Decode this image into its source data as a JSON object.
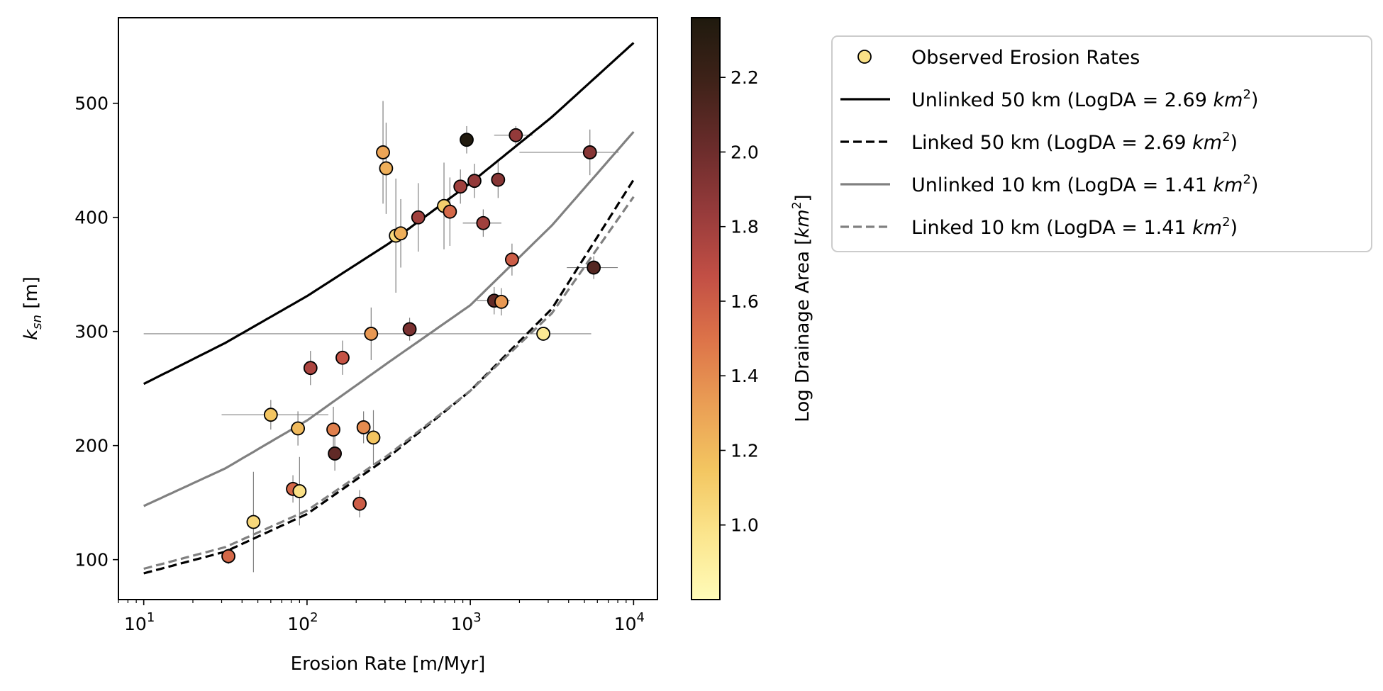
{
  "chart_data": {
    "type": "scatter",
    "title": "",
    "xlabel": "Erosion Rate [m/Myr]",
    "ylabel": {
      "base": "k",
      "sub": "sn",
      "suffix": " [m]"
    },
    "xscale": "log",
    "xlim": [
      7,
      14000
    ],
    "ylim": [
      65,
      575
    ],
    "x_ticks": [
      {
        "value": 10,
        "base": "10",
        "exp": "1"
      },
      {
        "value": 100,
        "base": "10",
        "exp": "2"
      },
      {
        "value": 1000,
        "base": "10",
        "exp": "3"
      },
      {
        "value": 10000,
        "base": "10",
        "exp": "4"
      }
    ],
    "y_ticks": [
      100,
      200,
      300,
      400,
      500
    ],
    "grid": false,
    "colorbar": {
      "label": {
        "text": "Log Drainage Area [",
        "unit": "km",
        "exp": "2",
        "close": "]"
      },
      "range": [
        0.8,
        2.36
      ],
      "ticks": [
        "1.0",
        "1.2",
        "1.4",
        "1.6",
        "1.8",
        "2.0",
        "2.2"
      ],
      "colormap": [
        "#fffbb8",
        "#fbe58d",
        "#f3c661",
        "#ea9f55",
        "#dd7449",
        "#c24f45",
        "#963b3b",
        "#6a2c2b",
        "#3f2219",
        "#1f1a0e"
      ]
    },
    "legend": {
      "placement": "outside-upper-right",
      "entries": [
        {
          "text": "Observed Erosion Rates",
          "symbol": "marker"
        },
        {
          "text": "Unlinked 50 km (LogDA = 2.69 ",
          "unit": "km",
          "exp": "2",
          "close": ")",
          "symbol": "line",
          "color": "#000000",
          "dash": "solid"
        },
        {
          "text": "Linked 50 km (LogDA = 2.69 ",
          "unit": "km",
          "exp": "2",
          "close": ")",
          "symbol": "line",
          "color": "#000000",
          "dash": "dashed"
        },
        {
          "text": "Unlinked 10 km (LogDA = 1.41 ",
          "unit": "km",
          "exp": "2",
          "close": ")",
          "symbol": "line",
          "color": "#808080",
          "dash": "solid"
        },
        {
          "text": "Linked 10 km (LogDA = 1.41 ",
          "unit": "km",
          "exp": "2",
          "close": ")",
          "symbol": "line",
          "color": "#808080",
          "dash": "dashed"
        }
      ]
    },
    "series": [
      {
        "name": "Unlinked 50 km (LogDA = 2.69 km2)",
        "type": "line",
        "color": "#000000",
        "dash": "solid",
        "x": [
          10,
          31.6,
          100,
          316,
          1000,
          3162,
          10000
        ],
        "y": [
          254,
          290,
          331,
          377,
          430,
          488,
          553
        ]
      },
      {
        "name": "Linked 50 km (LogDA = 2.69 km2)",
        "type": "line",
        "color": "#000000",
        "dash": "dashed",
        "x": [
          10,
          31.6,
          100,
          316,
          1000,
          3162,
          10000
        ],
        "y": [
          88,
          107,
          140,
          190,
          248,
          320,
          433
        ]
      },
      {
        "name": "Unlinked 10 km (LogDA = 1.41 km2)",
        "type": "line",
        "color": "#808080",
        "dash": "solid",
        "x": [
          10,
          31.6,
          100,
          316,
          1000,
          3162,
          10000
        ],
        "y": [
          147,
          180,
          222,
          273,
          323,
          393,
          475
        ]
      },
      {
        "name": "Linked 10 km (LogDA = 1.41 km2)",
        "type": "line",
        "color": "#808080",
        "dash": "dashed",
        "x": [
          10,
          31.6,
          100,
          316,
          1000,
          3162,
          10000
        ],
        "y": [
          92,
          111,
          143,
          192,
          248,
          316,
          418
        ]
      },
      {
        "name": "Observed Erosion Rates",
        "type": "scatter",
        "points": [
          {
            "x": 33,
            "y": 103,
            "logda": 1.55,
            "xerr": [
              0,
              0
            ],
            "yerr": [
              7,
              7
            ]
          },
          {
            "x": 47,
            "y": 133,
            "logda": 1.05,
            "xerr": [
              0,
              0
            ],
            "yerr": [
              44,
              44
            ]
          },
          {
            "x": 60,
            "y": 227,
            "logda": 1.15,
            "xerr": [
              30,
              75
            ],
            "yerr": [
              13,
              13
            ]
          },
          {
            "x": 88,
            "y": 215,
            "logda": 1.2,
            "xerr": [
              0,
              0
            ],
            "yerr": [
              15,
              15
            ]
          },
          {
            "x": 82,
            "y": 162,
            "logda": 1.55,
            "xerr": [
              0,
              0
            ],
            "yerr": [
              12,
              12
            ]
          },
          {
            "x": 90,
            "y": 160,
            "logda": 1.0,
            "xerr": [
              0,
              0
            ],
            "yerr": [
              30,
              30
            ]
          },
          {
            "x": 105,
            "y": 268,
            "logda": 1.75,
            "xerr": [
              0,
              0
            ],
            "yerr": [
              15,
              15
            ]
          },
          {
            "x": 145,
            "y": 214,
            "logda": 1.45,
            "xerr": [
              0,
              0
            ],
            "yerr": [
              20,
              20
            ]
          },
          {
            "x": 148,
            "y": 193,
            "logda": 2.05,
            "xerr": [
              0,
              0
            ],
            "yerr": [
              15,
              15
            ]
          },
          {
            "x": 165,
            "y": 277,
            "logda": 1.65,
            "xerr": [
              0,
              0
            ],
            "yerr": [
              15,
              15
            ]
          },
          {
            "x": 210,
            "y": 149,
            "logda": 1.6,
            "xerr": [
              0,
              0
            ],
            "yerr": [
              12,
              12
            ]
          },
          {
            "x": 222,
            "y": 216,
            "logda": 1.4,
            "xerr": [
              0,
              0
            ],
            "yerr": [
              14,
              14
            ]
          },
          {
            "x": 247,
            "y": 298,
            "logda": 1.35,
            "xerr": [
              0,
              0
            ],
            "yerr": [
              23,
              23
            ]
          },
          {
            "x": 255,
            "y": 207,
            "logda": 1.15,
            "xerr": [
              0,
              0
            ],
            "yerr": [
              24,
              24
            ]
          },
          {
            "x": 292,
            "y": 457,
            "logda": 1.3,
            "xerr": [
              0,
              0
            ],
            "yerr": [
              45,
              45
            ]
          },
          {
            "x": 305,
            "y": 443,
            "logda": 1.25,
            "xerr": [
              0,
              0
            ],
            "yerr": [
              40,
              40
            ]
          },
          {
            "x": 350,
            "y": 384,
            "logda": 1.05,
            "xerr": [
              0,
              0
            ],
            "yerr": [
              50,
              50
            ]
          },
          {
            "x": 375,
            "y": 386,
            "logda": 1.25,
            "xerr": [
              0,
              0
            ],
            "yerr": [
              30,
              30
            ]
          },
          {
            "x": 425,
            "y": 302,
            "logda": 1.95,
            "xerr": [
              0,
              0
            ],
            "yerr": [
              10,
              10
            ]
          },
          {
            "x": 2800,
            "y": 298,
            "logda": 0.95,
            "xerr": [
              2790,
              2700
            ],
            "yerr": [
              0,
              0
            ]
          },
          {
            "x": 480,
            "y": 400,
            "logda": 1.8,
            "xerr": [
              0,
              0
            ],
            "yerr": [
              30,
              30
            ]
          },
          {
            "x": 690,
            "y": 410,
            "logda": 1.1,
            "xerr": [
              0,
              0
            ],
            "yerr": [
              38,
              38
            ]
          },
          {
            "x": 750,
            "y": 405,
            "logda": 1.55,
            "xerr": [
              0,
              0
            ],
            "yerr": [
              30,
              30
            ]
          },
          {
            "x": 870,
            "y": 427,
            "logda": 1.8,
            "xerr": [
              0,
              0
            ],
            "yerr": [
              15,
              15
            ]
          },
          {
            "x": 950,
            "y": 468,
            "logda": 2.35,
            "xerr": [
              0,
              0
            ],
            "yerr": [
              12,
              12
            ]
          },
          {
            "x": 1060,
            "y": 432,
            "logda": 1.85,
            "xerr": [
              0,
              0
            ],
            "yerr": [
              15,
              15
            ]
          },
          {
            "x": 1200,
            "y": 395,
            "logda": 1.8,
            "xerr": [
              300,
              350
            ],
            "yerr": [
              12,
              12
            ]
          },
          {
            "x": 1400,
            "y": 327,
            "logda": 2.05,
            "xerr": [
              300,
              350
            ],
            "yerr": [
              12,
              12
            ]
          },
          {
            "x": 1480,
            "y": 433,
            "logda": 1.9,
            "xerr": [
              0,
              0
            ],
            "yerr": [
              16,
              16
            ]
          },
          {
            "x": 1550,
            "y": 326,
            "logda": 1.35,
            "xerr": [
              0,
              0
            ],
            "yerr": [
              12,
              12
            ]
          },
          {
            "x": 1800,
            "y": 363,
            "logda": 1.6,
            "xerr": [
              0,
              0
            ],
            "yerr": [
              14,
              14
            ]
          },
          {
            "x": 1900,
            "y": 472,
            "logda": 1.85,
            "xerr": [
              500,
              500
            ],
            "yerr": [
              8,
              8
            ]
          },
          {
            "x": 5400,
            "y": 457,
            "logda": 1.9,
            "xerr": [
              3400,
              2700
            ],
            "yerr": [
              20,
              20
            ]
          },
          {
            "x": 5700,
            "y": 356,
            "logda": 2.1,
            "xerr": [
              1800,
              2300
            ],
            "yerr": [
              10,
              10
            ]
          }
        ]
      }
    ]
  }
}
